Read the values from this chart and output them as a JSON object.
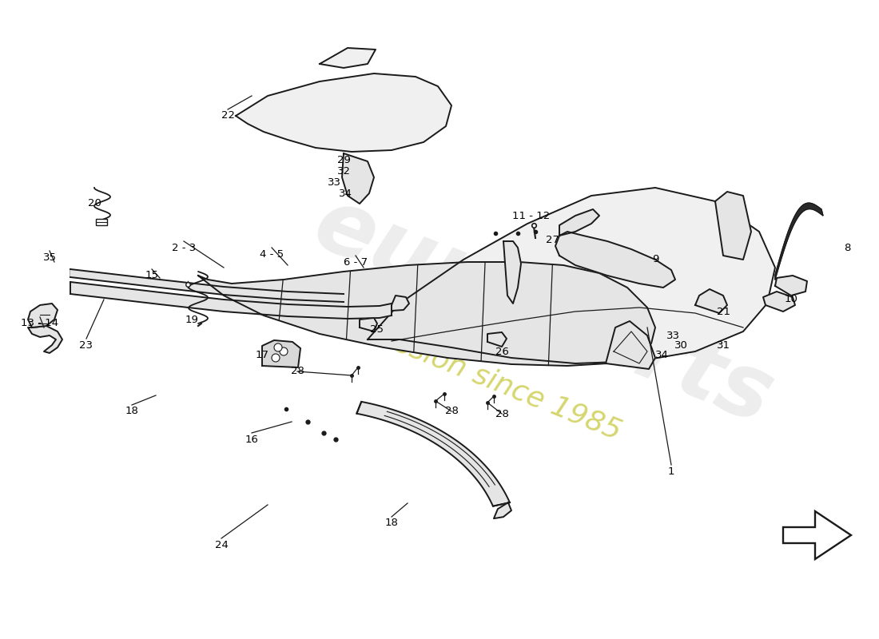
{
  "background_color": "#ffffff",
  "line_color": "#1a1a1a",
  "fill_light": "#f0f0f0",
  "fill_mid": "#e5e5e5",
  "fill_dark": "#d8d8d8",
  "watermark_text1": "euroParts",
  "watermark_color1": "#d8d8d8",
  "watermark_text2": "a passion since 1985",
  "watermark_color2": "#c8c840",
  "figsize": [
    11.0,
    8.0
  ],
  "dpi": 100,
  "labels": [
    [
      840,
      210,
      "1"
    ],
    [
      1060,
      490,
      "8"
    ],
    [
      820,
      475,
      "9"
    ],
    [
      990,
      425,
      "10"
    ],
    [
      665,
      530,
      "11 - 12"
    ],
    [
      50,
      395,
      "13 - 14"
    ],
    [
      190,
      455,
      "15"
    ],
    [
      315,
      250,
      "16"
    ],
    [
      328,
      355,
      "17"
    ],
    [
      165,
      285,
      "18"
    ],
    [
      490,
      145,
      "18"
    ],
    [
      240,
      400,
      "19"
    ],
    [
      118,
      545,
      "20"
    ],
    [
      905,
      410,
      "21"
    ],
    [
      285,
      655,
      "22"
    ],
    [
      108,
      368,
      "23"
    ],
    [
      277,
      118,
      "24"
    ],
    [
      472,
      388,
      "25"
    ],
    [
      628,
      360,
      "26"
    ],
    [
      692,
      500,
      "27"
    ],
    [
      372,
      335,
      "28"
    ],
    [
      565,
      285,
      "28"
    ],
    [
      628,
      282,
      "28"
    ],
    [
      430,
      600,
      "29"
    ],
    [
      852,
      368,
      "30"
    ],
    [
      905,
      368,
      "31"
    ],
    [
      430,
      585,
      "32"
    ],
    [
      418,
      572,
      "33"
    ],
    [
      842,
      380,
      "33"
    ],
    [
      432,
      558,
      "34"
    ],
    [
      828,
      355,
      "34"
    ],
    [
      62,
      478,
      "35"
    ],
    [
      230,
      490,
      "2 - 3"
    ],
    [
      340,
      482,
      "4 - 5"
    ],
    [
      445,
      472,
      "6 - 7"
    ]
  ]
}
